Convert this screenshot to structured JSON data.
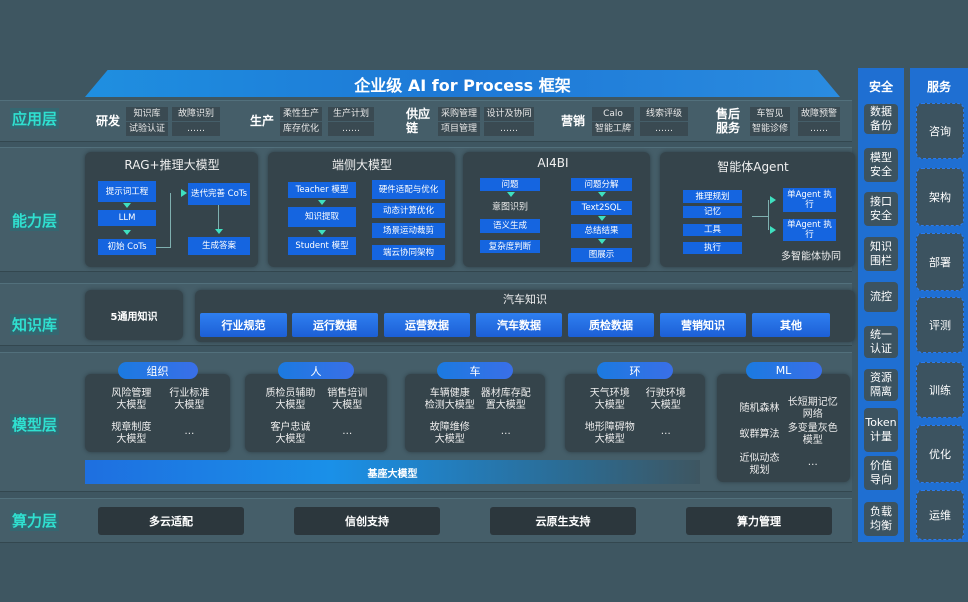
{
  "title": "企业级 AI for Process 框架",
  "layers": {
    "app": "应用层",
    "capability": "能力层",
    "knowledge": "知识库",
    "model": "模型层",
    "compute": "算力层"
  },
  "app_groups": [
    {
      "name": "研发",
      "items": [
        "知识库",
        "故障识别",
        "试验认证",
        "……"
      ]
    },
    {
      "name": "生产",
      "items": [
        "柔性生产",
        "生产计划",
        "库存优化",
        "……"
      ]
    },
    {
      "name": "供应链",
      "items": [
        "采购管理",
        "设计及协同",
        "项目管理",
        "……"
      ]
    },
    {
      "name": "营销",
      "items": [
        "Calo",
        "线索评级",
        "智能工牌",
        "……"
      ]
    },
    {
      "name": "售后服务",
      "items": [
        "车智见",
        "故障预警",
        "智能诊修",
        "……"
      ]
    }
  ],
  "capability": {
    "rag": {
      "title": "RAG+推理大模型",
      "boxes": [
        "提示词工程",
        "LLM",
        "初始 CoTs",
        "迭代完善 CoTs",
        "生成答案"
      ]
    },
    "edge": {
      "title": "端侧大模型",
      "boxes": [
        "Teacher 模型",
        "知识提取",
        "Student 模型",
        "硬件适配与优化",
        "动态计算优化",
        "场景运动裁剪",
        "端云协同架构"
      ]
    },
    "ai4bi": {
      "title": "AI4BI",
      "boxes": [
        "问题",
        "意图识别",
        "语义生成",
        "复杂度判断",
        "问题分解",
        "Text2SQL",
        "总结结果",
        "图展示"
      ]
    },
    "agent": {
      "title": "智能体Agent",
      "boxes": [
        "推理规划",
        "记忆",
        "工具",
        "执行",
        "单Agent 执行",
        "单Agent 执行"
      ],
      "footer": "多智能体协同"
    }
  },
  "knowledge": {
    "general": "5通用知识",
    "auto_title": "汽车知识",
    "items": [
      "行业规范",
      "运行数据",
      "运营数据",
      "汽车数据",
      "质检数据",
      "营销知识",
      "其他"
    ]
  },
  "models": [
    {
      "name": "组织",
      "items": [
        "风险管理\n大模型",
        "行业标准\n大模型",
        "规章制度\n大模型",
        "…"
      ]
    },
    {
      "name": "人",
      "items": [
        "质检员辅助\n大模型",
        "销售培训\n大模型",
        "客户忠诚\n大模型",
        "…"
      ]
    },
    {
      "name": "车",
      "items": [
        "车辆健康\n检测大模型",
        "器材库存配\n置大模型",
        "故障维修\n大模型",
        "…"
      ]
    },
    {
      "name": "环",
      "items": [
        "天气环境\n大模型",
        "行驶环境\n大模型",
        "地形障碍物\n大模型",
        "…"
      ]
    },
    {
      "name": "ML",
      "items": [
        "随机森林",
        "长短期记忆\n网络",
        "蚁群算法",
        "多变量灰色\n模型",
        "近似动态\n规划",
        "…"
      ]
    }
  ],
  "base_model": "基座大模型",
  "compute": [
    "多云适配",
    "信创支持",
    "云原生支持",
    "算力管理"
  ],
  "security": {
    "title": "安全",
    "items": [
      "数据备份",
      "模型安全",
      "接口安全",
      "知识围栏",
      "流控",
      "统一认证",
      "资源隔离",
      "Token计量",
      "价值导向",
      "负载均衡"
    ]
  },
  "services": {
    "title": "服务",
    "items": [
      "咨询",
      "架构",
      "部署",
      "评测",
      "训练",
      "优化",
      "运维"
    ]
  },
  "colors": {
    "background": "#3e5661",
    "accent_blue": "#1565e0",
    "layer_label": "#2fe0d0"
  }
}
